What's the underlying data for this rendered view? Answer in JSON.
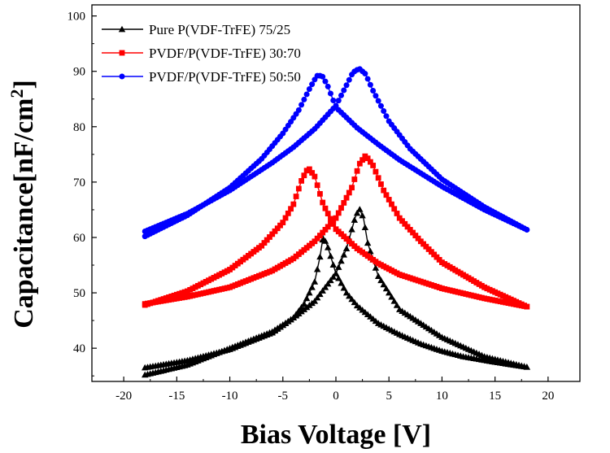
{
  "chart_data": {
    "type": "line",
    "xlabel": "Bias Voltage [V]",
    "ylabel": "Capacitance[nF/cm²]",
    "ylabel_base": "Capacitance[nF/cm",
    "ylabel_sup": "2",
    "ylabel_close": "]",
    "xlim": [
      -23,
      23
    ],
    "ylim": [
      34,
      102
    ],
    "x_ticks": [
      -20,
      -15,
      -10,
      -5,
      0,
      5,
      10,
      15,
      20
    ],
    "y_ticks": [
      40,
      50,
      60,
      70,
      80,
      90,
      100
    ],
    "grid": false,
    "legend_position": "top-left",
    "series": [
      {
        "name": "Pure P(VDF-TrFE) 75/25",
        "color": "#000000",
        "marker": "triangle",
        "base_neg": 36.5,
        "base_pos": 35.0,
        "branches": [
          {
            "x": [
              -18,
              -14,
              -10,
              -6,
              -4,
              -3,
              -2,
              -1.5,
              -1.2,
              -0.8,
              0,
              1,
              2,
              4,
              6,
              8,
              10,
              12,
              15,
              18
            ],
            "y": [
              36.5,
              37.8,
              39.8,
              42.8,
              45.5,
              48,
              52,
              56.5,
              60.2,
              58.5,
              53.5,
              50,
              47.7,
              44.5,
              42.5,
              40.8,
              39.5,
              38.5,
              37.5,
              36.6
            ]
          },
          {
            "x": [
              18,
              14,
              10,
              6,
              4,
              3,
              2.6,
              2.2,
              1.8,
              1,
              0,
              -2,
              -4,
              -6,
              -10,
              -14,
              -18
            ],
            "y": [
              36.6,
              38.5,
              42,
              47,
              53,
              59,
              63.5,
              65.3,
              63.5,
              58,
              53.5,
              48.5,
              45.5,
              43,
              40,
              37,
              35.2
            ]
          }
        ]
      },
      {
        "name": "PVDF/P(VDF-TrFE) 30:70",
        "color": "#ff0000",
        "marker": "square",
        "branches": [
          {
            "x": [
              -18,
              -14,
              -10,
              -7,
              -5,
              -4,
              -3.2,
              -2.6,
              -2,
              -1.2,
              0,
              2,
              4,
              6,
              10,
              14,
              18
            ],
            "y": [
              47.8,
              50.3,
              54.2,
              58.5,
              62.7,
              66,
              70.5,
              72.6,
              71,
              66,
              61.5,
              58,
              55.3,
              53.3,
              50.8,
              49,
              47.5
            ]
          },
          {
            "x": [
              18,
              14,
              10,
              8,
              6,
              4.5,
              3.5,
              2.8,
              2.2,
              1.5,
              0,
              -2,
              -4,
              -6,
              -10,
              -14,
              -18
            ],
            "y": [
              47.5,
              51,
              55.5,
              59.3,
              63.5,
              68.5,
              73,
              74.8,
              73.2,
              69,
              63.5,
              59.3,
              56.2,
              54,
              51,
              49.3,
              48
            ]
          }
        ]
      },
      {
        "name": "PVDF/P(VDF-TrFE) 50:50",
        "color": "#0000ff",
        "marker": "circle",
        "branches": [
          {
            "x": [
              -18,
              -14,
              -10,
              -7,
              -5,
              -3.5,
              -2.5,
              -1.8,
              -1.3,
              -0.8,
              0,
              2,
              4,
              6,
              10,
              14,
              18
            ],
            "y": [
              60.2,
              64,
              69,
              74.2,
              78.8,
              83,
              86.8,
              89.2,
              89.2,
              87.5,
              83.5,
              79.8,
              76.8,
              74,
              69.2,
              65,
              61.4
            ]
          },
          {
            "x": [
              18,
              14,
              10,
              7,
              5,
              3.5,
              2.8,
              2.2,
              1.6,
              1,
              0,
              -2,
              -4,
              -6,
              -10,
              -14,
              -18
            ],
            "y": [
              61.4,
              65.5,
              70.5,
              76,
              81,
              86.5,
              89.5,
              90.5,
              89.8,
              87.5,
              83.8,
              79.6,
              76.3,
              73.5,
              68.5,
              64.3,
              61.1
            ]
          }
        ]
      }
    ]
  }
}
